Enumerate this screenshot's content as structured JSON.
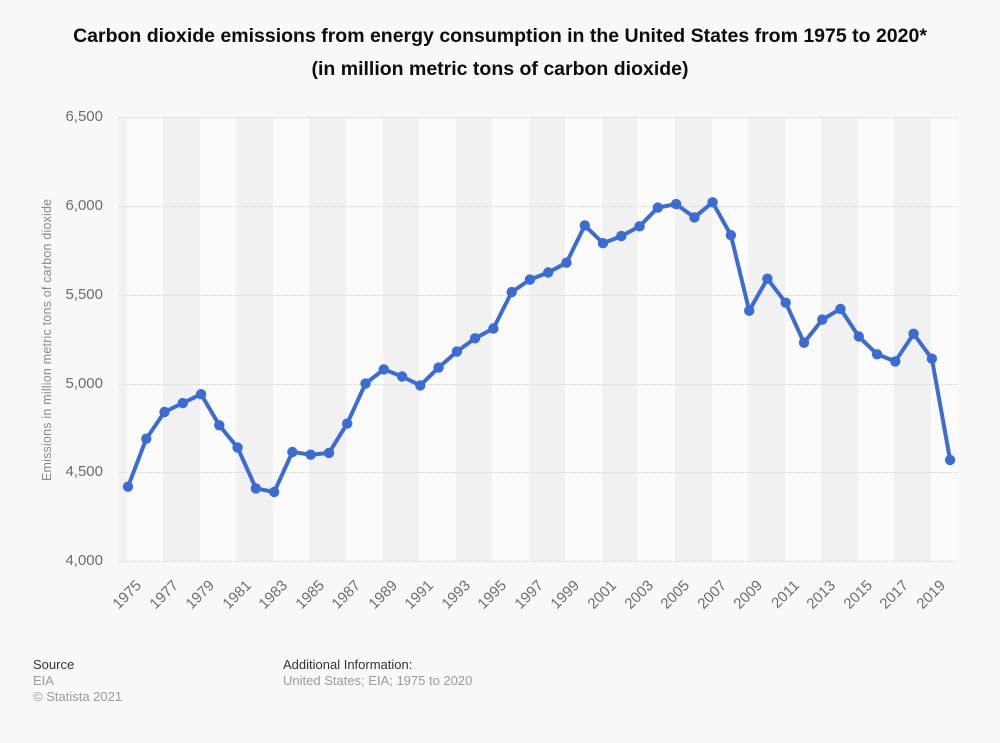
{
  "title": "Carbon dioxide emissions from energy consumption in the United States from 1975 to 2020* (in million metric tons of carbon dioxide)",
  "footer": {
    "source_label": "Source",
    "source_value": "EIA",
    "copyright": "© Statista 2021",
    "additional_label": "Additional Information:",
    "additional_value": "United States; EIA; 1975 to 2020"
  },
  "chart_data": {
    "type": "line",
    "title": "Carbon dioxide emissions from energy consumption in the United States from 1975 to 2020* (in million metric tons of carbon dioxide)",
    "xlabel": "",
    "ylabel": "Emissions in million metric tons of carbon dioxide",
    "ylim": [
      4000,
      6500
    ],
    "yticks": [
      4000,
      4500,
      5000,
      5500,
      6000,
      6500
    ],
    "ytick_labels": [
      "4,000",
      "4,500",
      "5,000",
      "5,500",
      "6,000",
      "6,500"
    ],
    "xticks": [
      1975,
      1977,
      1979,
      1981,
      1983,
      1985,
      1987,
      1989,
      1991,
      1993,
      1995,
      1997,
      1999,
      2001,
      2003,
      2005,
      2007,
      2009,
      2011,
      2013,
      2015,
      2017,
      2019
    ],
    "grid": true,
    "legend": false,
    "line_color": "#3a6cd4",
    "band_light_color": "#fbfbfc",
    "band_dark_color": "#f1f1f2",
    "x": [
      1975,
      1976,
      1977,
      1978,
      1979,
      1980,
      1981,
      1982,
      1983,
      1984,
      1985,
      1986,
      1987,
      1988,
      1989,
      1990,
      1991,
      1992,
      1993,
      1994,
      1995,
      1996,
      1997,
      1998,
      1999,
      2000,
      2001,
      2002,
      2003,
      2004,
      2005,
      2006,
      2007,
      2008,
      2009,
      2010,
      2011,
      2012,
      2013,
      2014,
      2015,
      2016,
      2017,
      2018,
      2019,
      2020
    ],
    "values": [
      4420,
      4690,
      4840,
      4890,
      4940,
      4765,
      4640,
      4410,
      4390,
      4615,
      4600,
      4610,
      4775,
      5000,
      5080,
      5040,
      4990,
      5090,
      5180,
      5255,
      5310,
      5515,
      5585,
      5625,
      5680,
      5890,
      5790,
      5830,
      5885,
      5990,
      6010,
      5935,
      6020,
      5835,
      5410,
      5590,
      5455,
      5230,
      5360,
      5420,
      5265,
      5165,
      5125,
      5280,
      5140,
      4570
    ]
  }
}
